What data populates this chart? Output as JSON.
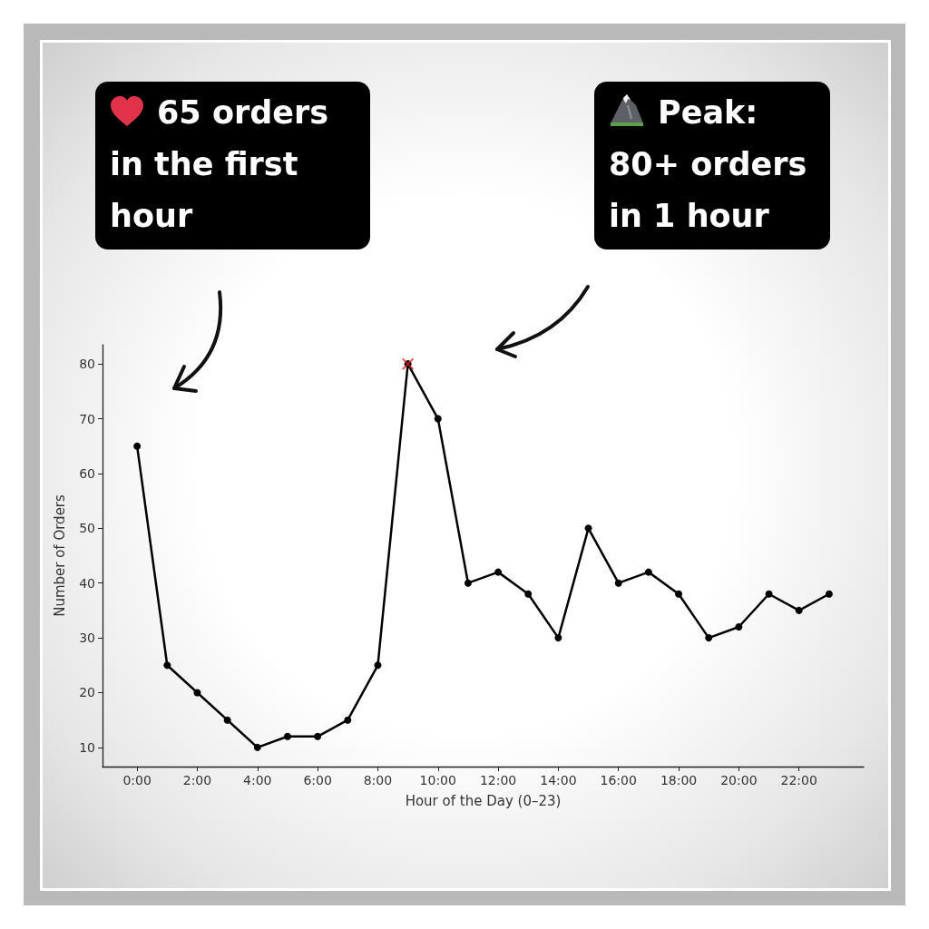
{
  "chart_data": {
    "type": "line",
    "xlabel": "Hour of the Day (0–23)",
    "ylabel": "Number of Orders",
    "x": [
      0,
      1,
      2,
      3,
      4,
      5,
      6,
      7,
      8,
      9,
      10,
      11,
      12,
      13,
      14,
      15,
      16,
      17,
      18,
      19,
      20,
      21,
      22,
      23
    ],
    "series": [
      {
        "color": "#000000",
        "marker": "circle",
        "values": [
          65,
          25,
          20,
          15,
          10,
          12,
          12,
          15,
          25,
          80,
          70,
          40,
          42,
          38,
          30,
          50,
          40,
          42,
          38,
          30,
          32,
          38,
          35,
          38
        ]
      },
      {
        "type": "scatter",
        "color": "#d62728",
        "marker": "cross",
        "x": [
          9
        ],
        "values": [
          80
        ]
      }
    ],
    "xlim": [
      -1.15,
      24.15
    ],
    "xticks": [
      {
        "value": 0,
        "label": "0:00"
      },
      {
        "value": 2,
        "label": "2:00"
      },
      {
        "value": 4,
        "label": "4:00"
      },
      {
        "value": 6,
        "label": "6:00"
      },
      {
        "value": 8,
        "label": "8:00"
      },
      {
        "value": 10,
        "label": "10:00"
      },
      {
        "value": 12,
        "label": "12:00"
      },
      {
        "value": 14,
        "label": "14:00"
      },
      {
        "value": 16,
        "label": "16:00"
      },
      {
        "value": 18,
        "label": "18:00"
      },
      {
        "value": 20,
        "label": "20:00"
      },
      {
        "value": 22,
        "label": "22:00"
      }
    ],
    "ylim": [
      6.5,
      83.5
    ],
    "yticks": [
      10,
      20,
      30,
      40,
      50,
      60,
      70,
      80
    ],
    "grid": false,
    "line_style": "solid",
    "annotations": [
      "65 orders in the first hour",
      "Peak: 80+ orders in 1 hour"
    ]
  }
}
